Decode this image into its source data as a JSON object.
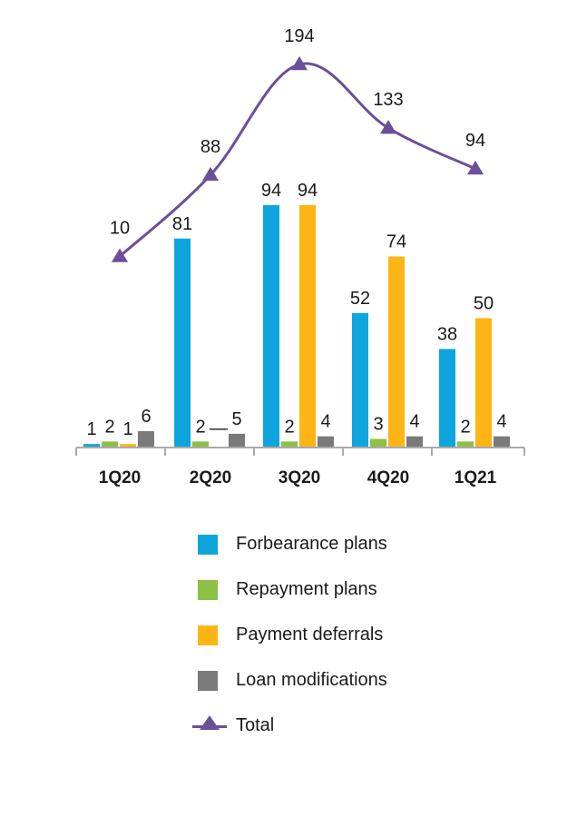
{
  "chart_data": {
    "type": "bar",
    "categories": [
      "1Q20",
      "2Q20",
      "3Q20",
      "4Q20",
      "1Q21"
    ],
    "series": [
      {
        "name": "Forbearance plans",
        "type": "bar",
        "color": "#0ea5dc",
        "values": [
          1,
          81,
          94,
          52,
          38
        ]
      },
      {
        "name": "Repayment plans",
        "type": "bar",
        "color": "#8dc044",
        "values": [
          2,
          2,
          2,
          3,
          2
        ]
      },
      {
        "name": "Payment deferrals",
        "type": "bar",
        "color": "#fdb515",
        "values": [
          1,
          null,
          94,
          74,
          50
        ],
        "labels": [
          "1",
          "—",
          "94",
          "74",
          "50"
        ]
      },
      {
        "name": "Loan modifications",
        "type": "bar",
        "color": "#7a7a7a",
        "values": [
          6,
          5,
          4,
          4,
          4
        ]
      },
      {
        "name": "Total",
        "type": "line",
        "marker": "triangle",
        "color": "#6b4f9a",
        "values": [
          10,
          88,
          194,
          133,
          94
        ]
      }
    ],
    "legend_position": "bottom",
    "grid": false,
    "xlabel": "",
    "ylabel": ""
  }
}
